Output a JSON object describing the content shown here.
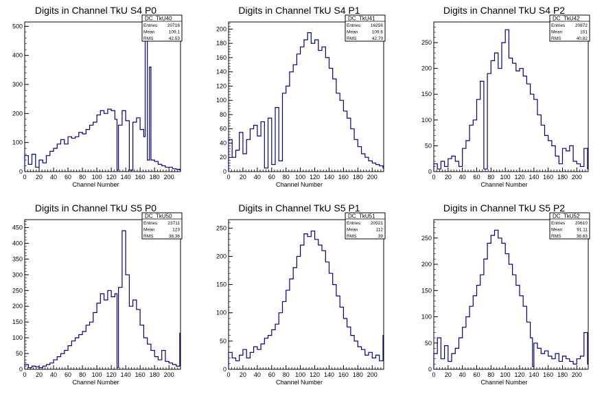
{
  "colors": {
    "line": "#000080",
    "axis": "#000000",
    "background": "#ffffff"
  },
  "chart_data": [
    {
      "type": "histogram",
      "title": "Digits in Channel TkU S4 P0",
      "xlabel": "Channel Number",
      "xlim": [
        0,
        216
      ],
      "ylim": [
        0,
        515
      ],
      "xticks": [
        0,
        20,
        40,
        60,
        80,
        100,
        120,
        140,
        160,
        180,
        200
      ],
      "yticks": [
        0,
        100,
        200,
        300,
        400,
        500
      ],
      "stats": {
        "name": "DC_TkU40",
        "rows": [
          [
            "Entries",
            "20716"
          ],
          [
            "Mean",
            "109.1"
          ],
          [
            "RMS",
            "42.53"
          ]
        ]
      },
      "series": [
        {
          "x": [
            0,
            5,
            10,
            15,
            20,
            25,
            30,
            35,
            40,
            45,
            50,
            55,
            60,
            65,
            70,
            75,
            80,
            85,
            90,
            95,
            100,
            105,
            110,
            115,
            120,
            125,
            128,
            130,
            135,
            140,
            145,
            150,
            155,
            160,
            165,
            167,
            170,
            173,
            175,
            180,
            185,
            190,
            195,
            200,
            205,
            210,
            215
          ],
          "y": [
            55,
            25,
            60,
            15,
            40,
            30,
            55,
            70,
            80,
            95,
            110,
            95,
            120,
            115,
            120,
            135,
            130,
            145,
            160,
            170,
            195,
            210,
            200,
            215,
            210,
            180,
            5,
            160,
            210,
            175,
            5,
            170,
            185,
            145,
            120,
            480,
            40,
            360,
            40,
            35,
            25,
            20,
            15,
            15,
            10,
            8,
            5
          ]
        }
      ]
    },
    {
      "type": "histogram",
      "title": "Digits in Channel TkU S4 P1",
      "xlabel": "Channel Number",
      "xlim": [
        0,
        216
      ],
      "ylim": [
        0,
        210
      ],
      "xticks": [
        0,
        20,
        40,
        60,
        80,
        100,
        120,
        140,
        160,
        180,
        200
      ],
      "yticks": [
        0,
        20,
        40,
        60,
        80,
        100,
        120,
        140,
        160,
        180,
        200
      ],
      "stats": {
        "name": "DC_TkU41",
        "rows": [
          [
            "Entries",
            "16256"
          ],
          [
            "Mean",
            "109.6"
          ],
          [
            "RMS",
            "42.79"
          ]
        ]
      },
      "series": [
        {
          "x": [
            0,
            5,
            10,
            15,
            20,
            25,
            30,
            35,
            40,
            45,
            50,
            55,
            60,
            65,
            70,
            75,
            80,
            85,
            90,
            95,
            100,
            105,
            110,
            115,
            120,
            125,
            130,
            135,
            140,
            145,
            150,
            155,
            160,
            165,
            170,
            175,
            180,
            185,
            190,
            195,
            200,
            205,
            210,
            215
          ],
          "y": [
            45,
            20,
            30,
            55,
            25,
            45,
            60,
            65,
            50,
            70,
            5,
            75,
            10,
            90,
            15,
            110,
            120,
            140,
            150,
            165,
            175,
            185,
            195,
            180,
            185,
            170,
            175,
            160,
            145,
            130,
            110,
            100,
            85,
            75,
            60,
            45,
            35,
            25,
            20,
            15,
            12,
            10,
            8,
            5
          ]
        }
      ]
    },
    {
      "type": "histogram",
      "title": "Digits in Channel TkU S4 P2",
      "xlabel": "Channel Number",
      "xlim": [
        0,
        216
      ],
      "ylim": [
        0,
        290
      ],
      "xticks": [
        0,
        20,
        40,
        60,
        80,
        100,
        120,
        140,
        160,
        180,
        200
      ],
      "yticks": [
        0,
        50,
        100,
        150,
        200,
        250
      ],
      "stats": {
        "name": "DC_TkU42",
        "rows": [
          [
            "Entries",
            "20872"
          ],
          [
            "Mean",
            "101"
          ],
          [
            "RMS",
            "40.82"
          ]
        ]
      },
      "series": [
        {
          "x": [
            0,
            5,
            10,
            15,
            20,
            25,
            30,
            35,
            40,
            45,
            50,
            55,
            60,
            65,
            70,
            75,
            80,
            85,
            90,
            95,
            100,
            105,
            110,
            115,
            120,
            125,
            130,
            135,
            140,
            145,
            150,
            155,
            160,
            165,
            170,
            175,
            180,
            185,
            190,
            195,
            200,
            205,
            210,
            215
          ],
          "y": [
            15,
            5,
            20,
            10,
            25,
            30,
            20,
            10,
            45,
            60,
            90,
            100,
            140,
            175,
            5,
            190,
            215,
            230,
            200,
            250,
            275,
            220,
            210,
            195,
            200,
            185,
            170,
            150,
            140,
            110,
            90,
            70,
            60,
            50,
            30,
            15,
            45,
            40,
            50,
            20,
            15,
            10,
            45,
            5
          ]
        }
      ]
    },
    {
      "type": "histogram",
      "title": "Digits in Channel TkU S5 P0",
      "xlabel": "Channel Number",
      "xlim": [
        0,
        216
      ],
      "ylim": [
        0,
        475
      ],
      "xticks": [
        0,
        20,
        40,
        60,
        80,
        100,
        120,
        140,
        160,
        180,
        200
      ],
      "yticks": [
        0,
        50,
        100,
        150,
        200,
        250,
        300,
        350,
        400,
        450
      ],
      "stats": {
        "name": "DC_TkU50",
        "rows": [
          [
            "Entries",
            "23711"
          ],
          [
            "Mean",
            "123"
          ],
          [
            "RMS",
            "38.36"
          ]
        ]
      },
      "series": [
        {
          "x": [
            0,
            5,
            10,
            15,
            20,
            25,
            30,
            35,
            40,
            45,
            50,
            55,
            60,
            65,
            70,
            75,
            80,
            85,
            90,
            95,
            100,
            105,
            110,
            115,
            120,
            125,
            128,
            130,
            135,
            140,
            145,
            150,
            155,
            160,
            165,
            170,
            175,
            180,
            185,
            190,
            195,
            200,
            205,
            210,
            215
          ],
          "y": [
            15,
            5,
            10,
            8,
            5,
            10,
            15,
            20,
            30,
            40,
            50,
            60,
            75,
            90,
            100,
            110,
            120,
            140,
            150,
            180,
            210,
            240,
            220,
            250,
            230,
            240,
            5,
            260,
            440,
            300,
            200,
            220,
            190,
            140,
            100,
            80,
            60,
            40,
            30,
            60,
            25,
            20,
            15,
            10,
            115
          ]
        }
      ]
    },
    {
      "type": "histogram",
      "title": "Digits in Channel TkU S5 P1",
      "xlabel": "Channel Number",
      "xlim": [
        0,
        216
      ],
      "ylim": [
        0,
        265
      ],
      "xticks": [
        0,
        20,
        40,
        60,
        80,
        100,
        120,
        140,
        160,
        180,
        200
      ],
      "yticks": [
        0,
        50,
        100,
        150,
        200,
        250
      ],
      "stats": {
        "name": "DC_TkU51",
        "rows": [
          [
            "Entries",
            "20521"
          ],
          [
            "Mean",
            "112"
          ],
          [
            "RMS",
            "39"
          ]
        ]
      },
      "series": [
        {
          "x": [
            0,
            5,
            10,
            15,
            20,
            25,
            30,
            35,
            40,
            45,
            50,
            55,
            60,
            65,
            70,
            75,
            80,
            85,
            90,
            95,
            100,
            105,
            110,
            115,
            120,
            125,
            130,
            135,
            140,
            145,
            150,
            155,
            160,
            165,
            170,
            175,
            180,
            185,
            190,
            195,
            200,
            205,
            210,
            215
          ],
          "y": [
            30,
            20,
            15,
            25,
            35,
            20,
            30,
            40,
            35,
            45,
            55,
            60,
            70,
            80,
            100,
            120,
            140,
            160,
            180,
            200,
            220,
            240,
            235,
            245,
            230,
            220,
            210,
            190,
            170,
            150,
            130,
            110,
            90,
            75,
            60,
            50,
            40,
            35,
            25,
            30,
            20,
            25,
            15,
            60
          ]
        }
      ]
    },
    {
      "type": "histogram",
      "title": "Digits in Channel TkU S5 P2",
      "xlabel": "Channel Number",
      "xlim": [
        0,
        216
      ],
      "ylim": [
        0,
        285
      ],
      "xticks": [
        0,
        20,
        40,
        60,
        80,
        100,
        120,
        140,
        160,
        180,
        200
      ],
      "yticks": [
        0,
        50,
        100,
        150,
        200,
        250
      ],
      "stats": {
        "name": "DC_TkU52",
        "rows": [
          [
            "Entries",
            "20610"
          ],
          [
            "Mean",
            "91.11"
          ],
          [
            "RMS",
            "38.63"
          ]
        ]
      },
      "series": [
        {
          "x": [
            0,
            5,
            10,
            15,
            20,
            25,
            30,
            35,
            40,
            45,
            50,
            55,
            60,
            65,
            70,
            75,
            80,
            85,
            90,
            95,
            100,
            105,
            110,
            115,
            120,
            125,
            130,
            135,
            138,
            140,
            145,
            150,
            155,
            160,
            165,
            170,
            175,
            180,
            185,
            190,
            195,
            200,
            205,
            210,
            215
          ],
          "y": [
            30,
            60,
            20,
            45,
            15,
            30,
            40,
            60,
            80,
            100,
            120,
            140,
            160,
            180,
            210,
            240,
            255,
            265,
            250,
            240,
            220,
            200,
            180,
            160,
            140,
            120,
            90,
            60,
            5,
            50,
            40,
            30,
            35,
            25,
            20,
            30,
            15,
            25,
            20,
            15,
            10,
            20,
            25,
            70,
            10
          ]
        }
      ]
    }
  ]
}
